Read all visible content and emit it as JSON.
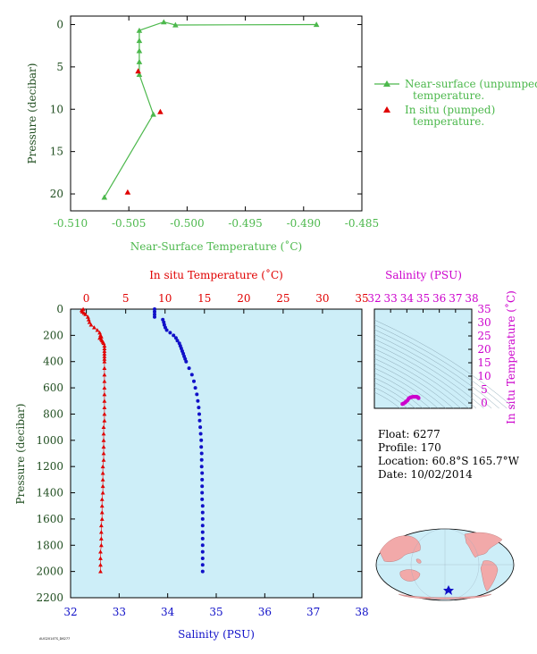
{
  "colors": {
    "surface_green": "#4cb84c",
    "temp_red": "#e00000",
    "salinity_blue": "#1010c8",
    "magenta": "#cc00cc",
    "dark_green": "#1f4d1f",
    "panel_bg": "#cdeef8",
    "land": "#f2a9a9",
    "ocean": "#cdeef8"
  },
  "info": {
    "float": "Float: 6277",
    "profile": "Profile: 170",
    "location": "Location: 60.8°S 165.7°W",
    "date": "Date: 10/02/2014"
  },
  "footer_tag": "AUG2014TS_D6277",
  "chart_data": [
    {
      "type": "line",
      "id": "near-surface",
      "xlabel": "Near-Surface Temperature (˚C)",
      "ylabel": "Pressure (decibar)",
      "xlim": [
        -0.51,
        -0.485
      ],
      "ylim": [
        22,
        -1
      ],
      "x_ticks": [
        -0.51,
        -0.505,
        -0.5,
        -0.495,
        -0.49,
        -0.485
      ],
      "x_tick_labels": [
        "-0.510",
        "-0.505",
        "-0.500",
        "-0.495",
        "-0.490",
        "-0.485"
      ],
      "y_ticks": [
        0,
        5,
        10,
        15,
        20
      ],
      "y_tick_labels": [
        "0",
        "5",
        "10",
        "15",
        "20"
      ],
      "legend_position": "right",
      "series": [
        {
          "name": "Near-surface (unpumped) temperature.",
          "marker": "triangle-line",
          "x": [
            -0.4889,
            -0.501,
            -0.502,
            -0.5041,
            -0.5041,
            -0.5041,
            -0.5041,
            -0.5041,
            -0.5029,
            -0.5071
          ],
          "y": [
            0.0,
            0.05,
            -0.3,
            0.7,
            1.9,
            3.1,
            4.4,
            5.9,
            10.6,
            20.4
          ]
        },
        {
          "name": "In situ (pumped) temperature.",
          "marker": "triangle",
          "x": [
            -0.5042,
            -0.5023,
            -0.5051
          ],
          "y": [
            5.5,
            10.3,
            19.8
          ]
        }
      ]
    },
    {
      "type": "scatter",
      "id": "profile",
      "top_xlabel": "In situ Temperature (˚C)",
      "bottom_xlabel": "Salinity (PSU)",
      "ylabel": "Pressure (decibar)",
      "temp_lim": [
        -2,
        35
      ],
      "sal_lim": [
        32,
        38
      ],
      "ylim": [
        2200,
        0
      ],
      "temp_ticks": [
        0,
        5,
        10,
        15,
        20,
        25,
        30,
        35
      ],
      "temp_tick_labels": [
        "0",
        "5",
        "10",
        "15",
        "20",
        "25",
        "30",
        "35"
      ],
      "sal_ticks": [
        32,
        33,
        34,
        35,
        36,
        37,
        38
      ],
      "sal_tick_labels": [
        "32",
        "33",
        "34",
        "35",
        "36",
        "37",
        "38"
      ],
      "y_ticks": [
        0,
        200,
        400,
        600,
        800,
        1000,
        1200,
        1400,
        1600,
        1800,
        2000,
        2200
      ],
      "y_tick_labels": [
        "0",
        "200",
        "400",
        "600",
        "800",
        "1000",
        "1200",
        "1400",
        "1600",
        "1800",
        "2000",
        "2200"
      ],
      "temperature": {
        "p": [
          0,
          10,
          20,
          30,
          40,
          60,
          80,
          100,
          120,
          140,
          160,
          180,
          200,
          210,
          220,
          230,
          240,
          250,
          260,
          280,
          300,
          320,
          340,
          360,
          380,
          400,
          450,
          500,
          550,
          600,
          650,
          700,
          750,
          800,
          850,
          900,
          950,
          1000,
          1050,
          1100,
          1150,
          1200,
          1250,
          1300,
          1350,
          1400,
          1450,
          1500,
          1550,
          1600,
          1650,
          1700,
          1750,
          1800,
          1850,
          1900,
          1950,
          2000
        ],
        "t": [
          -0.4,
          -0.6,
          -0.5,
          -0.3,
          -0.1,
          0.2,
          0.3,
          0.4,
          0.6,
          1.0,
          1.4,
          1.7,
          1.8,
          1.9,
          1.7,
          1.9,
          2.0,
          2.1,
          2.2,
          2.3,
          2.3,
          2.3,
          2.3,
          2.3,
          2.3,
          2.3,
          2.3,
          2.3,
          2.3,
          2.3,
          2.3,
          2.3,
          2.3,
          2.3,
          2.3,
          2.2,
          2.2,
          2.2,
          2.2,
          2.2,
          2.2,
          2.1,
          2.1,
          2.1,
          2.1,
          2.1,
          2.0,
          2.0,
          2.0,
          2.0,
          1.9,
          1.9,
          1.9,
          1.9,
          1.8,
          1.8,
          1.8,
          1.8
        ]
      },
      "salinity": {
        "p": [
          0,
          20,
          40,
          60,
          80,
          100,
          120,
          140,
          160,
          180,
          200,
          220,
          240,
          260,
          280,
          300,
          320,
          340,
          360,
          380,
          400,
          450,
          500,
          550,
          600,
          650,
          700,
          750,
          800,
          850,
          900,
          950,
          1000,
          1050,
          1100,
          1150,
          1200,
          1250,
          1300,
          1350,
          1400,
          1450,
          1500,
          1550,
          1600,
          1650,
          1700,
          1750,
          1800,
          1850,
          1900,
          1950,
          2000
        ],
        "s": [
          33.73,
          33.73,
          33.73,
          33.73,
          33.9,
          33.92,
          33.93,
          33.95,
          33.98,
          34.05,
          34.12,
          34.17,
          34.2,
          34.24,
          34.26,
          34.28,
          34.3,
          34.32,
          34.34,
          34.36,
          34.38,
          34.44,
          34.5,
          34.54,
          34.57,
          34.6,
          34.62,
          34.64,
          34.65,
          34.66,
          34.67,
          34.68,
          34.69,
          34.69,
          34.7,
          34.7,
          34.7,
          34.71,
          34.71,
          34.71,
          34.71,
          34.71,
          34.72,
          34.72,
          34.72,
          34.72,
          34.72,
          34.72,
          34.72,
          34.72,
          34.72,
          34.72,
          34.72
        ]
      }
    },
    {
      "type": "scatter",
      "id": "ts-diagram",
      "top_xlabel": "Salinity (PSU)",
      "ylabel": "In situ Temperature (˚C)",
      "xlim": [
        32,
        38
      ],
      "ylim": [
        -2,
        35
      ],
      "x_ticks": [
        32,
        33,
        34,
        35,
        36,
        37,
        38
      ],
      "x_tick_labels": [
        "32",
        "33",
        "34",
        "35",
        "36",
        "37",
        "38"
      ],
      "y_ticks": [
        0,
        5,
        10,
        15,
        20,
        25,
        30,
        35
      ],
      "y_tick_labels": [
        "0",
        "5",
        "10",
        "15",
        "20",
        "25",
        "30",
        "35"
      ],
      "points": {
        "s": [
          33.73,
          33.8,
          33.9,
          33.95,
          34.05,
          34.12,
          34.2,
          34.3,
          34.4,
          34.5,
          34.6,
          34.65,
          34.7,
          34.72
        ],
        "t": [
          -0.4,
          -0.2,
          0.2,
          0.5,
          1.0,
          1.7,
          2.0,
          2.2,
          2.3,
          2.3,
          2.3,
          2.2,
          2.0,
          1.8
        ]
      }
    }
  ]
}
